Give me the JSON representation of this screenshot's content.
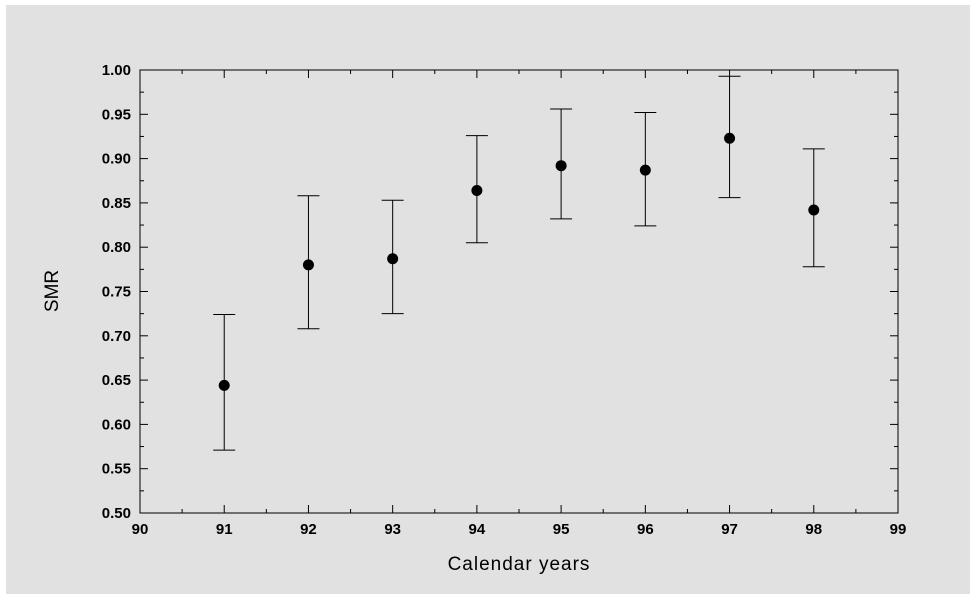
{
  "chart_data": {
    "type": "scatter",
    "title": "",
    "xlabel": "Calendar years",
    "ylabel": "SMR",
    "xlim": [
      90,
      99
    ],
    "ylim": [
      0.5,
      1.0
    ],
    "x_ticks": [
      "90",
      "91",
      "92",
      "93",
      "94",
      "95",
      "96",
      "97",
      "98",
      "99"
    ],
    "y_ticks": [
      "0.50",
      "0.55",
      "0.60",
      "0.65",
      "0.70",
      "0.75",
      "0.80",
      "0.85",
      "0.90",
      "0.95",
      "1.00"
    ],
    "grid": false,
    "legend": "none",
    "error_bars": true,
    "series": [
      {
        "x": [
          91,
          92,
          93,
          94,
          95,
          96,
          97,
          98
        ],
        "y": [
          0.644,
          0.78,
          0.787,
          0.864,
          0.892,
          0.887,
          0.923,
          0.842
        ],
        "lower": [
          0.571,
          0.708,
          0.725,
          0.805,
          0.832,
          0.824,
          0.856,
          0.778
        ],
        "upper": [
          0.724,
          0.858,
          0.853,
          0.926,
          0.956,
          0.952,
          0.993,
          0.911
        ]
      }
    ],
    "colors": {
      "background": "#e1e1e1",
      "marker": "#000000",
      "axis": "#000000"
    }
  }
}
